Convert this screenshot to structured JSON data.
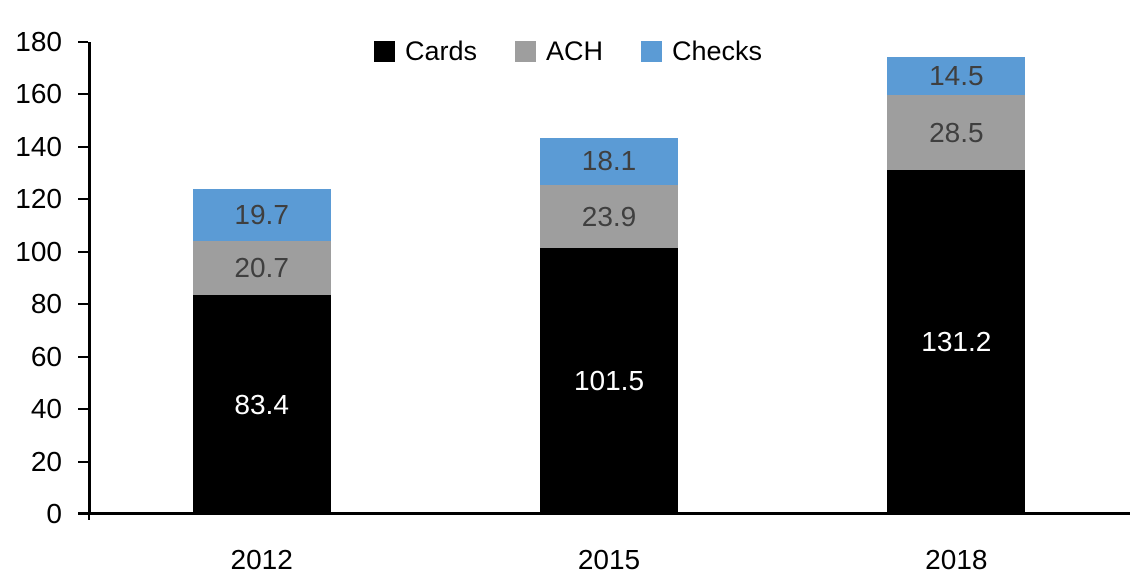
{
  "chart_data": {
    "type": "bar",
    "stacked": true,
    "title": "",
    "xlabel": "",
    "ylabel": "",
    "categories": [
      "2012",
      "2015",
      "2018"
    ],
    "series": [
      {
        "name": "Cards",
        "color": "#000000",
        "label_color": "#ffffff",
        "values": [
          83.4,
          101.5,
          131.2
        ]
      },
      {
        "name": "ACH",
        "color": "#9e9e9e",
        "label_color": "#3f3f3f",
        "values": [
          20.7,
          23.9,
          28.5
        ]
      },
      {
        "name": "Checks",
        "color": "#5b9bd5",
        "label_color": "#3f3f3f",
        "values": [
          19.7,
          18.1,
          14.5
        ]
      }
    ],
    "ylim": [
      0,
      180
    ],
    "ytick_step": 20,
    "yticks": [
      0,
      20,
      40,
      60,
      80,
      100,
      120,
      140,
      160,
      180
    ],
    "value_decimals": 1,
    "grid": false,
    "axis_color": "#000000",
    "legend": {
      "position": "top",
      "order": [
        "Cards",
        "ACH",
        "Checks"
      ]
    }
  }
}
